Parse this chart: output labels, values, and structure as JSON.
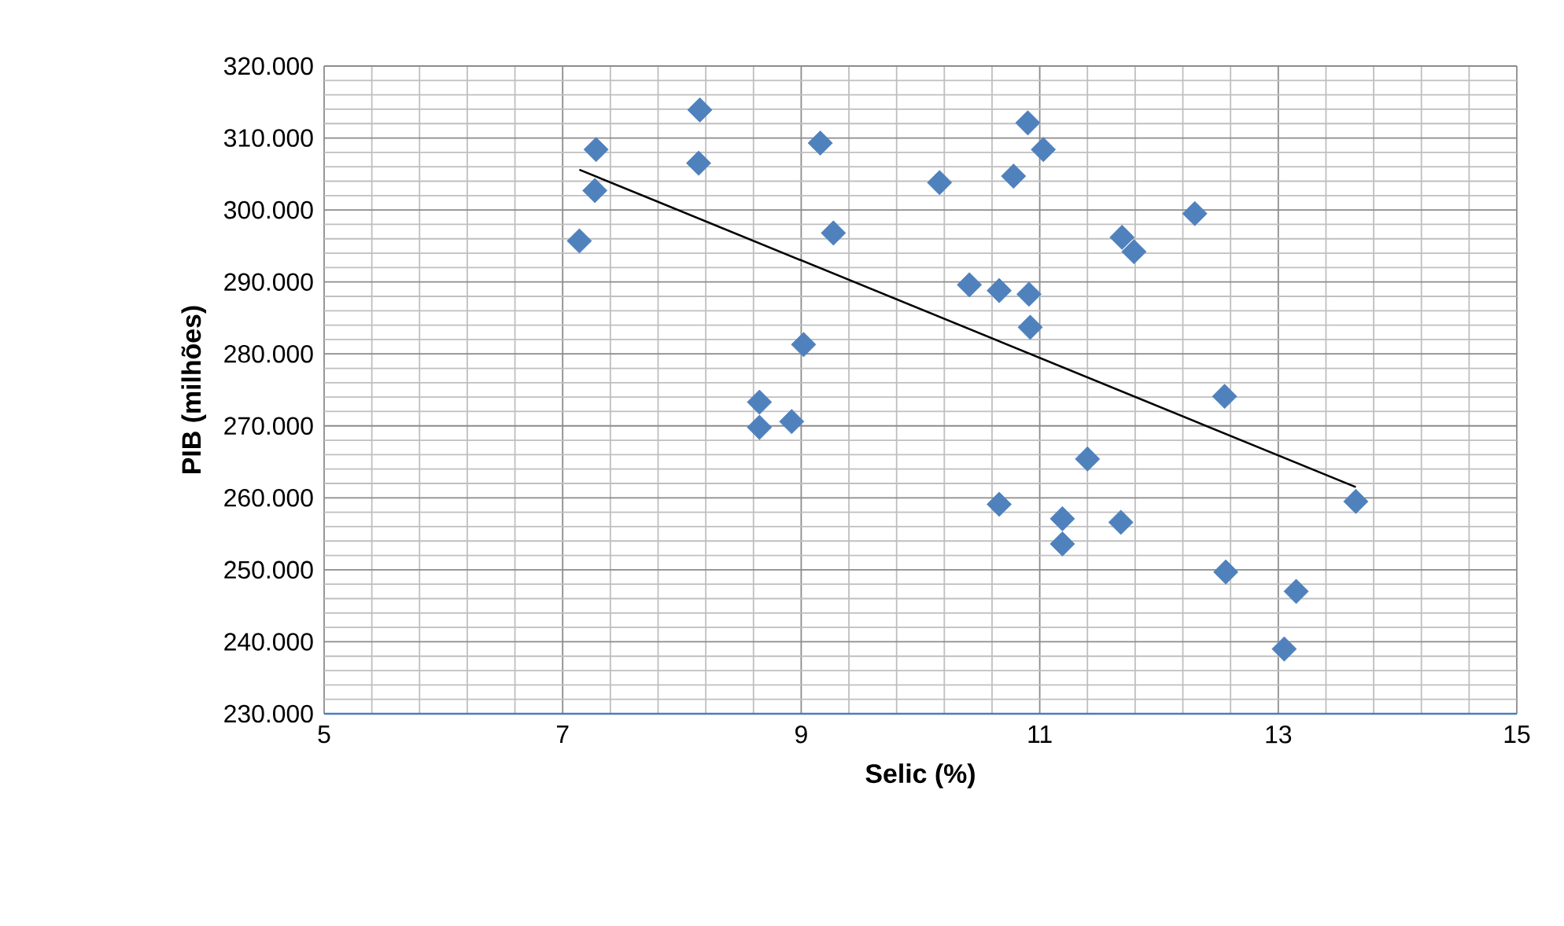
{
  "chart_data": {
    "type": "scatter",
    "xlabel": "Selic (%)",
    "ylabel": "PIB (milhões)",
    "xlim": [
      5,
      15
    ],
    "xticks": [
      5,
      7,
      9,
      11,
      13,
      15
    ],
    "ylim": [
      230,
      320
    ],
    "yticks": [
      {
        "value": 230,
        "label": "230.000"
      },
      {
        "value": 240,
        "label": "240.000"
      },
      {
        "value": 250,
        "label": "250.000"
      },
      {
        "value": 260,
        "label": "260.000"
      },
      {
        "value": 270,
        "label": "270.000"
      },
      {
        "value": 280,
        "label": "280.000"
      },
      {
        "value": 290,
        "label": "290.000"
      },
      {
        "value": 300,
        "label": "300.000"
      },
      {
        "value": 310,
        "label": "310.000"
      },
      {
        "value": 320,
        "label": "320.000"
      }
    ],
    "grid": true,
    "series": [
      {
        "marker": "diamond",
        "color": "#4f81bd",
        "x": [
          7.14,
          7.28,
          7.27,
          8.15,
          8.14,
          9.16,
          9.27,
          9.02,
          8.65,
          8.65,
          8.92,
          10.16,
          10.41,
          10.66,
          10.91,
          10.92,
          10.78,
          10.9,
          11.03,
          11.69,
          11.79,
          12.3,
          12.55,
          11.4,
          10.66,
          11.19,
          11.19,
          11.68,
          12.56,
          13.15,
          13.05,
          13.65
        ],
        "values": [
          295.7,
          308.4,
          302.7,
          313.9,
          306.5,
          309.3,
          296.8,
          281.3,
          273.3,
          269.8,
          270.6,
          303.8,
          289.6,
          288.8,
          288.3,
          283.7,
          304.7,
          312.1,
          308.4,
          296.2,
          294.2,
          299.5,
          274.1,
          265.4,
          259.1,
          257.1,
          253.6,
          256.6,
          249.7,
          247.0,
          239.0,
          259.5
        ]
      },
      {
        "type": "line",
        "color": "#000000",
        "x": [
          7.14,
          13.65
        ],
        "values": [
          305.6,
          261.5
        ]
      }
    ]
  }
}
